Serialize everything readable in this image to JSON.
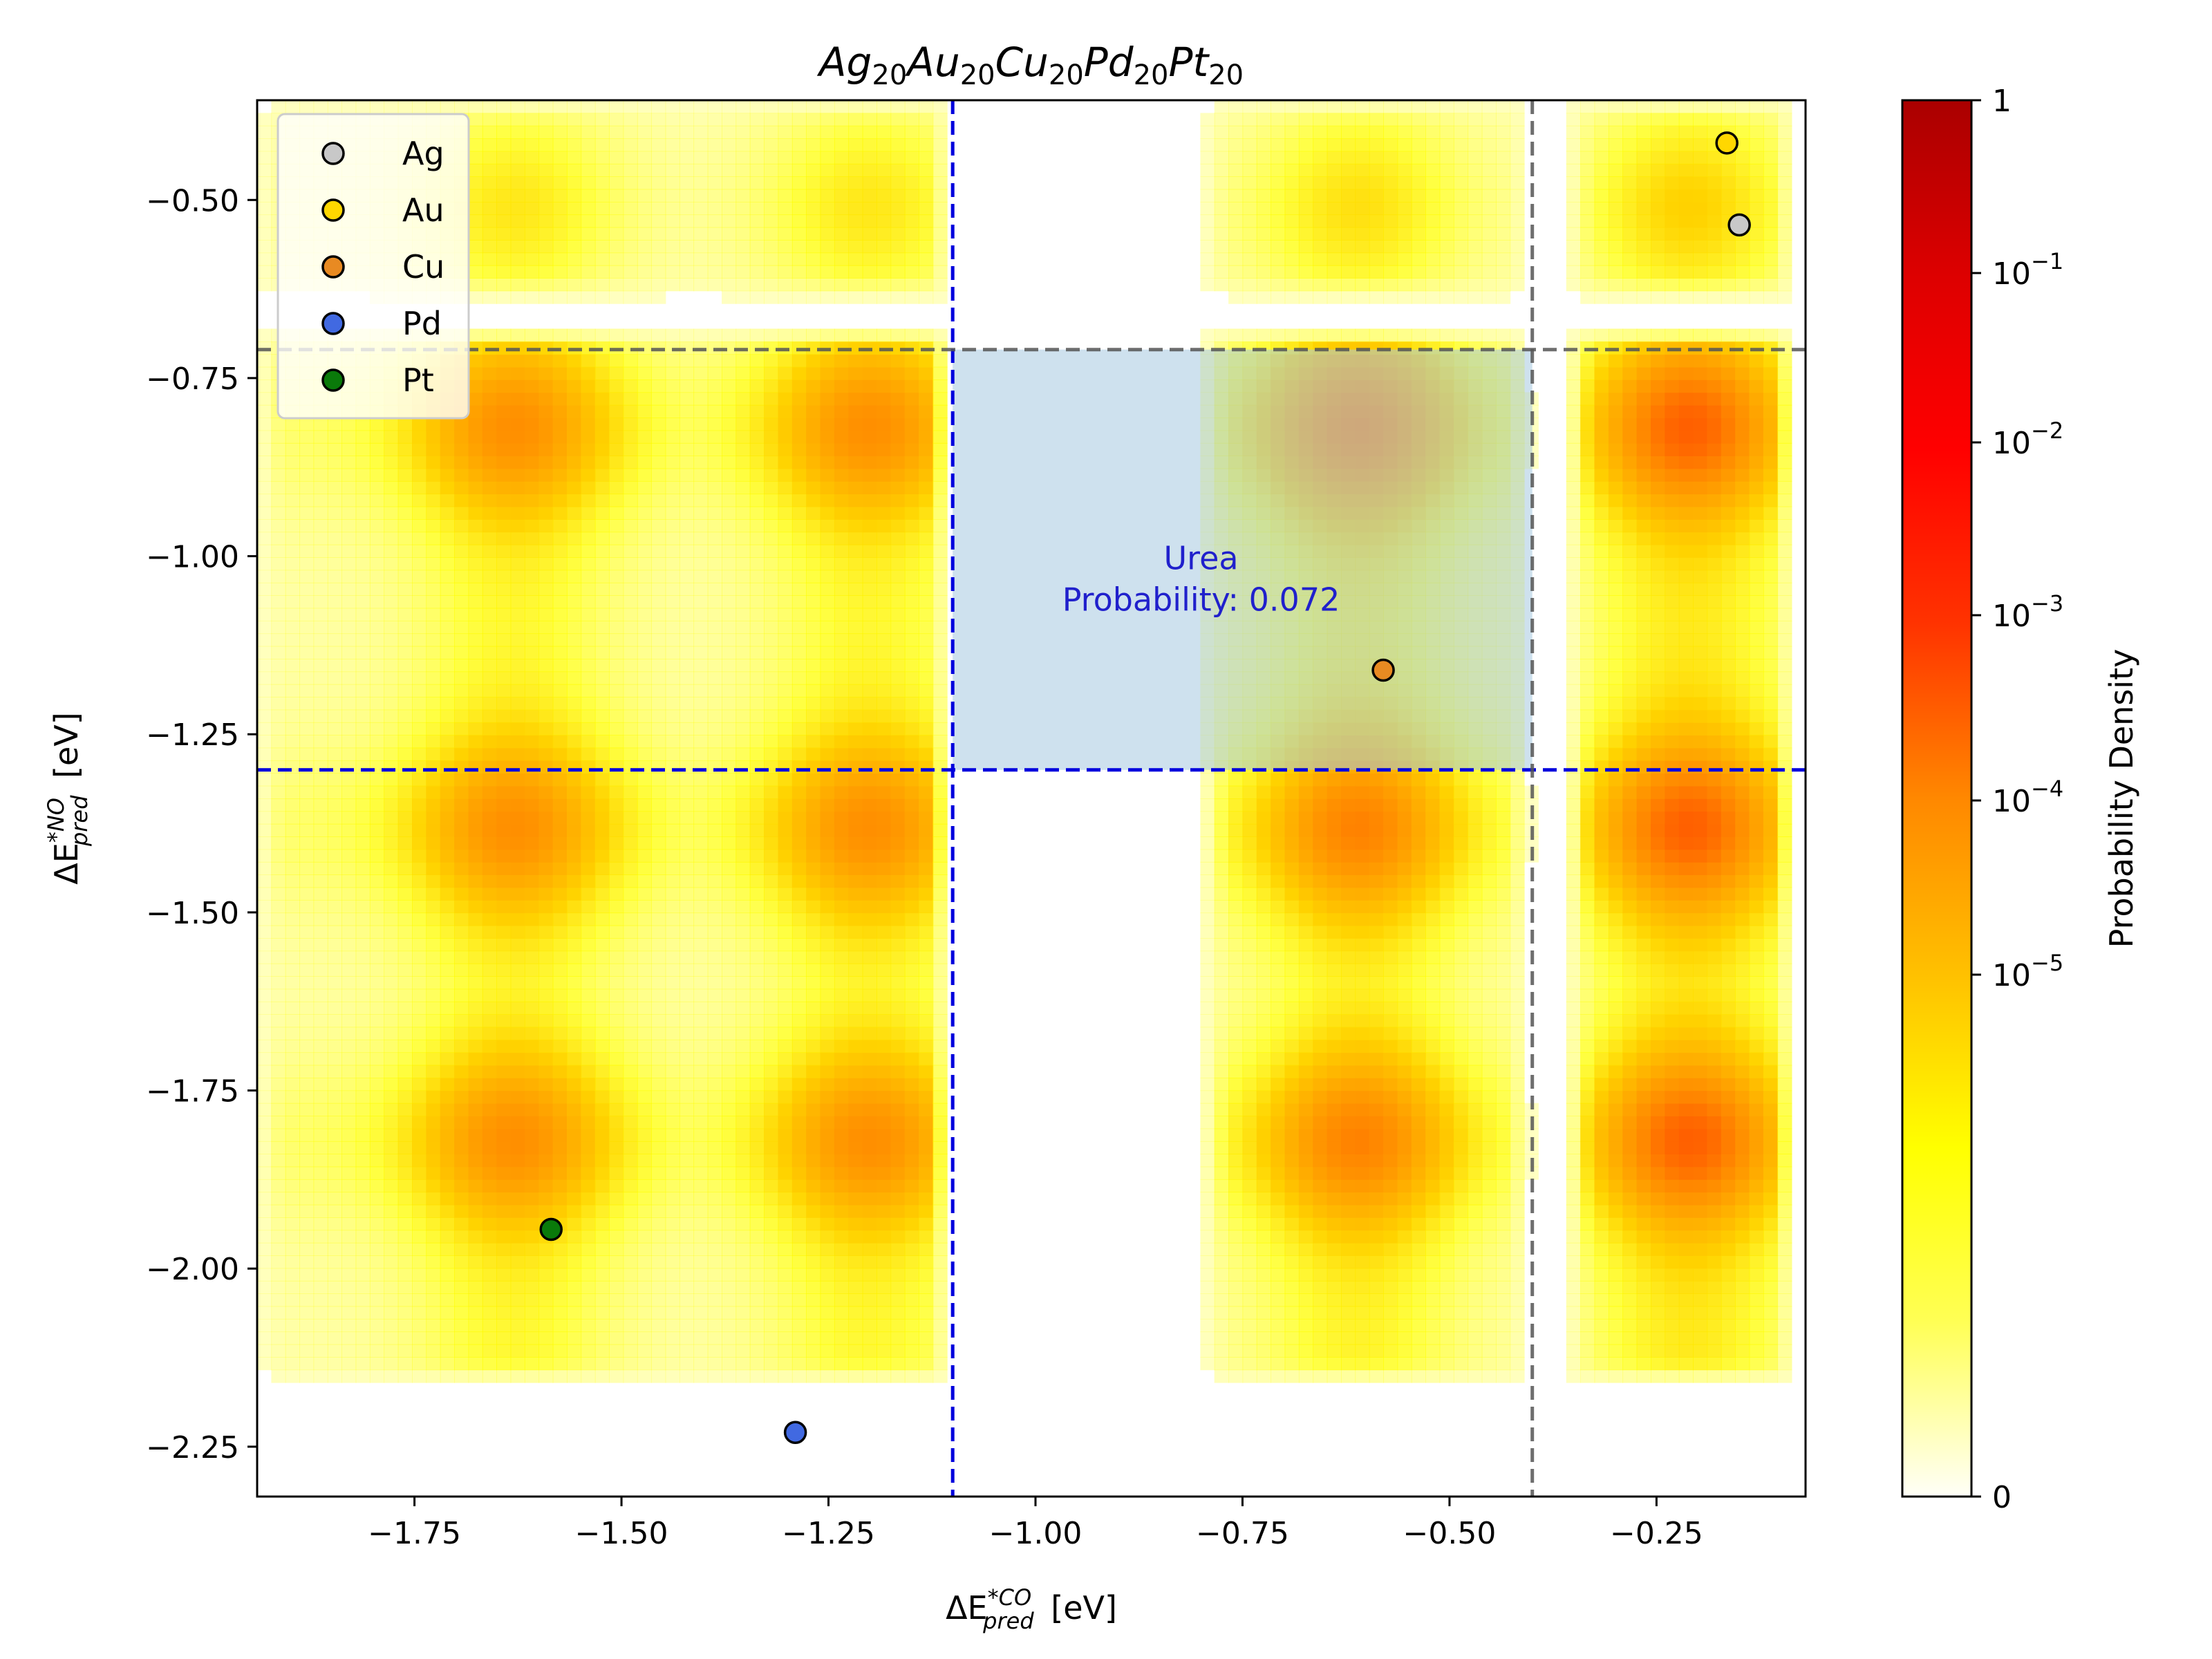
{
  "chart_data": {
    "type": "heatmap",
    "title": {
      "base": [
        [
          "Ag",
          "20"
        ],
        [
          "Au",
          "20"
        ],
        [
          "Cu",
          "20"
        ],
        [
          "Pd",
          "20"
        ],
        [
          "Pt",
          "20"
        ]
      ]
    },
    "xlabel": {
      "main": "ΔE",
      "sup": "*CO",
      "sub": "pred",
      "unit": "[eV]"
    },
    "ylabel": {
      "main": "ΔE",
      "sup": "*NO",
      "sub": "pred",
      "unit": "[eV]"
    },
    "xlim": [
      -1.94,
      -0.07
    ],
    "ylim": [
      -2.32,
      -0.36
    ],
    "xticks": [
      -1.75,
      -1.5,
      -1.25,
      -1.0,
      -0.75,
      -0.5,
      -0.25
    ],
    "xtick_labels": [
      "−1.75",
      "−1.50",
      "−1.25",
      "−1.00",
      "−0.75",
      "−0.50",
      "−0.25"
    ],
    "yticks": [
      -0.5,
      -0.75,
      -1.0,
      -1.25,
      -1.5,
      -1.75,
      -2.0,
      -2.25
    ],
    "ytick_labels": [
      "−0.50",
      "−0.75",
      "−1.00",
      "−1.25",
      "−1.50",
      "−1.75",
      "−2.00",
      "−2.25"
    ],
    "density": {
      "x_bands": [
        {
          "x_range": [
            -1.94,
            -1.1
          ],
          "centers": [
            -1.63,
            -1.2
          ],
          "peak": 0.55
        },
        {
          "x_range": [
            -0.8,
            -0.4
          ],
          "centers": [
            -0.61
          ],
          "peak": 0.6
        },
        {
          "x_range": [
            -0.36,
            -0.08
          ],
          "centers": [
            -0.21
          ],
          "peak": 0.7
        }
      ],
      "y_bands": [
        {
          "y_range": [
            -0.64,
            -0.36
          ],
          "centers": [
            -0.51
          ],
          "weight": 0.5
        },
        {
          "y_range": [
            -2.16,
            -0.68
          ],
          "centers": [
            -0.82,
            -1.38,
            -1.82
          ],
          "weight": 1.0
        }
      ]
    },
    "thresholds": [
      {
        "axis": "x",
        "value": -1.1,
        "color": "#0000dd",
        "style": "dashed"
      },
      {
        "axis": "y",
        "value": -1.3,
        "color": "#0000dd",
        "style": "dashed"
      },
      {
        "axis": "x",
        "value": -0.4,
        "color": "#555555",
        "style": "dashed"
      },
      {
        "axis": "y",
        "value": -0.71,
        "color": "#555555",
        "style": "dashed"
      }
    ],
    "region": {
      "x": [
        -1.1,
        -0.4
      ],
      "y": [
        -1.3,
        -0.71
      ],
      "color": "#a6c8e0",
      "label_lines": [
        "Urea",
        "Probability: 0.072"
      ],
      "label_pos": {
        "x": -0.8,
        "y": -1.03
      },
      "label_color": "#2020cc"
    },
    "series": [
      {
        "name": "Ag",
        "color": "#c8c8c8",
        "x": -0.15,
        "y": -0.535
      },
      {
        "name": "Au",
        "color": "#ffd700",
        "x": -0.165,
        "y": -0.42
      },
      {
        "name": "Cu",
        "color": "#e88a22",
        "x": -0.58,
        "y": -1.16
      },
      {
        "name": "Pd",
        "color": "#4169e1",
        "x": -1.29,
        "y": -2.23
      },
      {
        "name": "Pt",
        "color": "#0a7a0a",
        "x": -1.585,
        "y": -1.945
      }
    ],
    "legend": {
      "position": "top-left"
    },
    "colorbar": {
      "label": "Probability Density",
      "scale": "log",
      "ticks": [
        {
          "base": "1",
          "exp": ""
        },
        {
          "base": "10",
          "exp": "−1"
        },
        {
          "base": "10",
          "exp": "−2"
        },
        {
          "base": "10",
          "exp": "−3"
        },
        {
          "base": "10",
          "exp": "−4"
        },
        {
          "base": "10",
          "exp": "−5"
        },
        {
          "base": "0",
          "exp": ""
        }
      ],
      "colors": [
        "#fffff8",
        "#ffff55",
        "#ffff00",
        "#ffc000",
        "#ff8800",
        "#ff3300",
        "#ff0000",
        "#dd0000",
        "#aa0000"
      ]
    }
  }
}
